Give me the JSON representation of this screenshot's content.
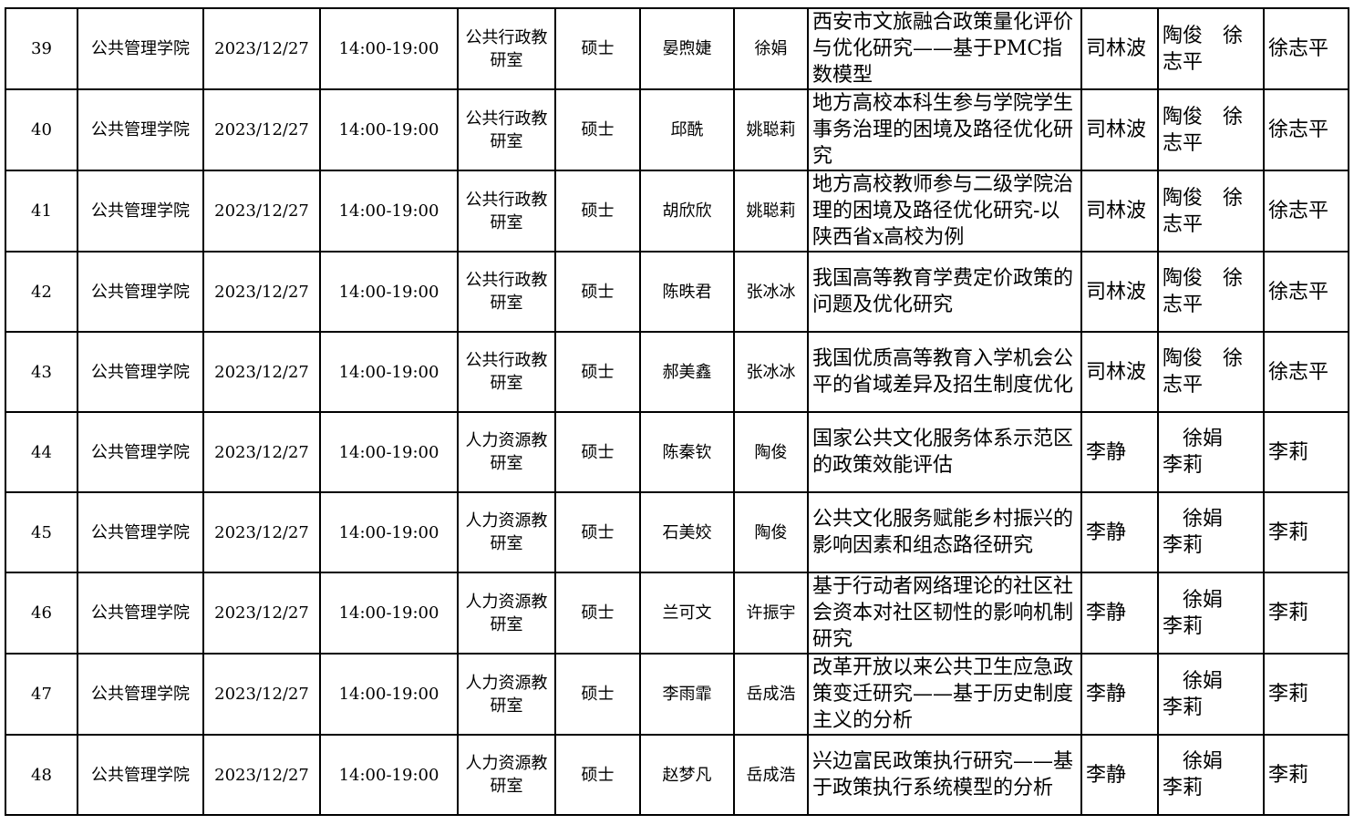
{
  "rows": [
    {
      "no": "39",
      "college": "公共管理学院",
      "date": "2023/12/27",
      "time": "14:00-19:00",
      "office": "公共行政教研室",
      "degree": "硕士",
      "student": "晏煦婕",
      "advisor": "徐娟",
      "title": "西安市文旅融合政策量化评价与优化研究——基于PMC指数模型",
      "chair": "司林波",
      "committee": "陶俊　徐志平",
      "secretary": "徐志平"
    },
    {
      "no": "40",
      "college": "公共管理学院",
      "date": "2023/12/27",
      "time": "14:00-19:00",
      "office": "公共行政教研室",
      "degree": "硕士",
      "student": "邱酰",
      "advisor": "姚聪莉",
      "title": "地方高校本科生参与学院学生事务治理的困境及路径优化研究",
      "chair": "司林波",
      "committee": "陶俊　徐志平",
      "secretary": "徐志平"
    },
    {
      "no": "41",
      "college": "公共管理学院",
      "date": "2023/12/27",
      "time": "14:00-19:00",
      "office": "公共行政教研室",
      "degree": "硕士",
      "student": "胡欣欣",
      "advisor": "姚聪莉",
      "title": "地方高校教师参与二级学院治理的困境及路径优化研究-以陕西省x高校为例",
      "chair": "司林波",
      "committee": "陶俊　徐志平",
      "secretary": "徐志平"
    },
    {
      "no": "42",
      "college": "公共管理学院",
      "date": "2023/12/27",
      "time": "14:00-19:00",
      "office": "公共行政教研室",
      "degree": "硕士",
      "student": "陈昳君",
      "advisor": "张冰冰",
      "title": "我国高等教育学费定价政策的问题及优化研究",
      "chair": "司林波",
      "committee": "陶俊　徐志平",
      "secretary": "徐志平"
    },
    {
      "no": "43",
      "college": "公共管理学院",
      "date": "2023/12/27",
      "time": "14:00-19:00",
      "office": "公共行政教研室",
      "degree": "硕士",
      "student": "郝美鑫",
      "advisor": "张冰冰",
      "title": "我国优质高等教育入学机会公平的省域差异及招生制度优化",
      "chair": "司林波",
      "committee": "陶俊　徐志平",
      "secretary": "徐志平"
    },
    {
      "no": "44",
      "college": "公共管理学院",
      "date": "2023/12/27",
      "time": "14:00-19:00",
      "office": "人力资源教研室",
      "degree": "硕士",
      "student": "陈秦钦",
      "advisor": "陶俊",
      "title": "国家公共文化服务体系示范区的政策效能评估",
      "chair": "李静",
      "committee": "　徐娟　　李莉",
      "secretary": "李莉"
    },
    {
      "no": "45",
      "college": "公共管理学院",
      "date": "2023/12/27",
      "time": "14:00-19:00",
      "office": "人力资源教研室",
      "degree": "硕士",
      "student": "石美姣",
      "advisor": "陶俊",
      "title": "公共文化服务赋能乡村振兴的影响因素和组态路径研究",
      "chair": "李静",
      "committee": "　徐娟　　李莉",
      "secretary": "李莉"
    },
    {
      "no": "46",
      "college": "公共管理学院",
      "date": "2023/12/27",
      "time": "14:00-19:00",
      "office": "人力资源教研室",
      "degree": "硕士",
      "student": "兰可文",
      "advisor": "许振宇",
      "title": "基于行动者网络理论的社区社会资本对社区韧性的影响机制研究",
      "chair": "李静",
      "committee": "　徐娟　　李莉",
      "secretary": "李莉"
    },
    {
      "no": "47",
      "college": "公共管理学院",
      "date": "2023/12/27",
      "time": "14:00-19:00",
      "office": "人力资源教研室",
      "degree": "硕士",
      "student": "李雨霏",
      "advisor": "岳成浩",
      "title": "改革开放以来公共卫生应急政策变迁研究——基于历史制度主义的分析",
      "chair": "李静",
      "committee": "　徐娟　　李莉",
      "secretary": "李莉"
    },
    {
      "no": "48",
      "college": "公共管理学院",
      "date": "2023/12/27",
      "time": "14:00-19:00",
      "office": "人力资源教研室",
      "degree": "硕士",
      "student": "赵梦凡",
      "advisor": "岳成浩",
      "title": "兴边富民政策执行研究——基于政策执行系统模型的分析",
      "chair": "李静",
      "committee": "　徐娟　　李莉",
      "secretary": "李莉"
    }
  ]
}
